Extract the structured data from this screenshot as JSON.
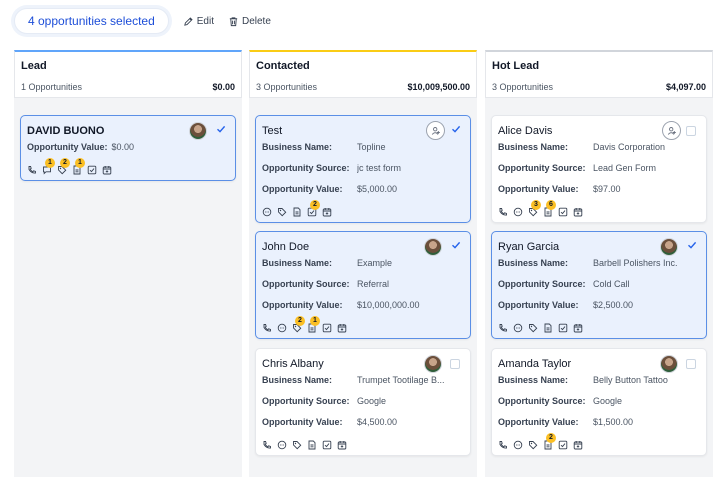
{
  "toolbar": {
    "selected_label": "4 opportunities selected",
    "edit_label": "Edit",
    "delete_label": "Delete"
  },
  "labels": {
    "business_name": "Business Name:",
    "opportunity_source": "Opportunity Source:",
    "opportunity_value": "Opportunity Value:"
  },
  "colors": {
    "lead": "#60a5fa",
    "contacted": "#facc15",
    "hot_lead": "#d1d5db",
    "selected_card_bg": "#eaf1fd",
    "selected_card_border": "#5b8fe6",
    "badge": "#fbbf24",
    "accent": "#1d4ed8"
  },
  "columns": [
    {
      "title": "Lead",
      "count": "1 Opportunities",
      "total": "$0.00",
      "cards": [
        {
          "name": "DAVID BUONO",
          "value": "$0.00",
          "selected": true,
          "owner": "avatar",
          "badges": {
            "call": "",
            "chat": "1",
            "tag": "2",
            "note": "1",
            "task": "",
            "calendar": ""
          }
        }
      ]
    },
    {
      "title": "Contacted",
      "count": "3 Opportunities",
      "total": "$10,009,500.00",
      "cards": [
        {
          "name": "Test",
          "business": "Topline",
          "source": "jc test form",
          "value": "$5,000.00",
          "selected": true,
          "owner": "unassigned",
          "badges": {
            "chat": "",
            "tag": "",
            "note": "",
            "task": "2",
            "calendar": ""
          }
        },
        {
          "name": "John Doe",
          "business": "Example",
          "source": "Referral",
          "value": "$10,000,000.00",
          "selected": true,
          "owner": "avatar",
          "badges": {
            "call": "",
            "chat": "",
            "tag": "2",
            "note": "1",
            "task": "",
            "calendar": ""
          }
        },
        {
          "name": "Chris Albany",
          "business": "Trumpet Tootilage B...",
          "source": "Google",
          "value": "$4,500.00",
          "selected": false,
          "owner": "avatar",
          "badges": {
            "call": "",
            "chat": "",
            "tag": "",
            "note": "",
            "task": "",
            "calendar": ""
          }
        }
      ]
    },
    {
      "title": "Hot Lead",
      "count": "3 Opportunities",
      "total": "$4,097.00",
      "cards": [
        {
          "name": "Alice Davis",
          "business": "Davis Corporation",
          "source": "Lead Gen Form",
          "value": "$97.00",
          "selected": false,
          "owner": "unassigned",
          "badges": {
            "call": "",
            "chat": "",
            "tag": "3",
            "note": "6",
            "task": "",
            "calendar": ""
          }
        },
        {
          "name": "Ryan Garcia",
          "business": "Barbell Polishers Inc.",
          "source": "Cold Call",
          "value": "$2,500.00",
          "selected": true,
          "owner": "avatar",
          "badges": {
            "call": "",
            "chat": "",
            "tag": "",
            "note": "",
            "task": "",
            "calendar": ""
          }
        },
        {
          "name": "Amanda Taylor",
          "business": "Belly Button Tattoo",
          "source": "Google",
          "value": "$1,500.00",
          "selected": false,
          "owner": "avatar",
          "badges": {
            "call": "",
            "chat": "",
            "tag": "",
            "note": "2",
            "task": "",
            "calendar": ""
          }
        }
      ]
    }
  ]
}
